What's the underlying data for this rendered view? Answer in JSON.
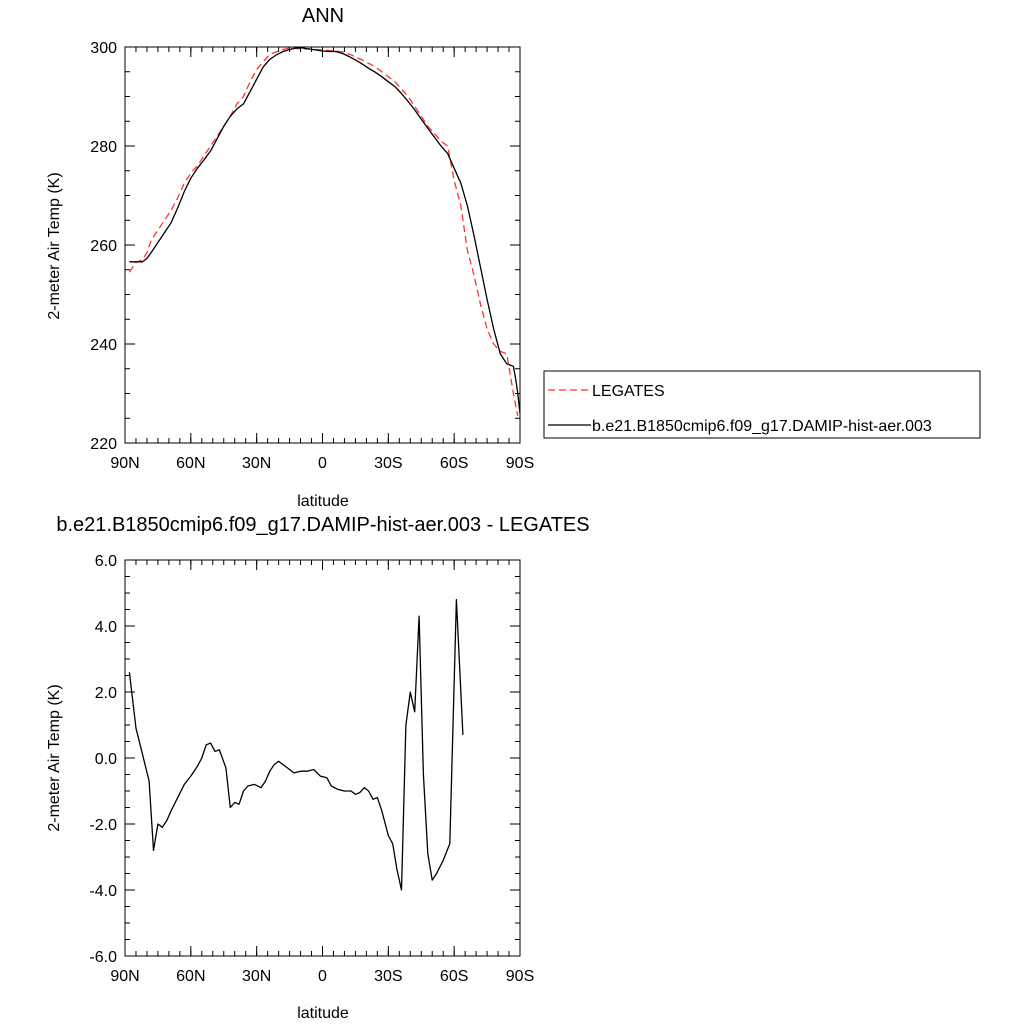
{
  "chart_data": [
    {
      "type": "line",
      "title": "ANN",
      "xlabel": "latitude",
      "ylabel": "2-meter Air Temp (K)",
      "xlim": [
        90,
        -90
      ],
      "ylim": [
        220,
        300
      ],
      "xticks": [
        {
          "value": 90,
          "label": "90N"
        },
        {
          "value": 60,
          "label": "60N"
        },
        {
          "value": 30,
          "label": "30N"
        },
        {
          "value": 0,
          "label": "0"
        },
        {
          "value": -30,
          "label": "30S"
        },
        {
          "value": -60,
          "label": "60S"
        },
        {
          "value": -90,
          "label": "90S"
        }
      ],
      "yticks": [
        {
          "value": 220,
          "label": "220"
        },
        {
          "value": 240,
          "label": "240"
        },
        {
          "value": 260,
          "label": "260"
        },
        {
          "value": 280,
          "label": "280"
        },
        {
          "value": 300,
          "label": "300"
        }
      ],
      "legend_position": "right",
      "series": [
        {
          "name": "LEGATES",
          "color": "#ff3333",
          "dash": "dashed",
          "points": [
            [
              88,
              254.5
            ],
            [
              85,
              256.5
            ],
            [
              82,
              257
            ],
            [
              80,
              258.5
            ],
            [
              78,
              261
            ],
            [
              75,
              263
            ],
            [
              72,
              265
            ],
            [
              69,
              267
            ],
            [
              66,
              269.5
            ],
            [
              63,
              272.5
            ],
            [
              60,
              274.5
            ],
            [
              57,
              276
            ],
            [
              54,
              278
            ],
            [
              51,
              280
            ],
            [
              48,
              282
            ],
            [
              45,
              284
            ],
            [
              42,
              286
            ],
            [
              39,
              288.5
            ],
            [
              36,
              290
            ],
            [
              33,
              293
            ],
            [
              30,
              295.5
            ],
            [
              27,
              297
            ],
            [
              24,
              298.5
            ],
            [
              21,
              299
            ],
            [
              18,
              299.5
            ],
            [
              15,
              299.8
            ],
            [
              12,
              299.7
            ],
            [
              9,
              299.6
            ],
            [
              6,
              299.6
            ],
            [
              3,
              299.5
            ],
            [
              0,
              299.4
            ],
            [
              -3,
              299.3
            ],
            [
              -6,
              299.2
            ],
            [
              -9,
              299
            ],
            [
              -12,
              298.6
            ],
            [
              -15,
              298
            ],
            [
              -18,
              297.4
            ],
            [
              -21,
              296.7
            ],
            [
              -24,
              296
            ],
            [
              -27,
              295
            ],
            [
              -30,
              294
            ],
            [
              -33,
              293
            ],
            [
              -36,
              291.5
            ],
            [
              -39,
              290
            ],
            [
              -42,
              288
            ],
            [
              -45,
              286
            ],
            [
              -48,
              284
            ],
            [
              -51,
              282.5
            ],
            [
              -54,
              281
            ],
            [
              -57,
              280
            ],
            [
              -60,
              273
            ],
            [
              -63,
              268
            ],
            [
              -66,
              259
            ],
            [
              -69,
              254
            ],
            [
              -72,
              248
            ],
            [
              -75,
              243
            ],
            [
              -78,
              240
            ],
            [
              -81,
              238.5
            ],
            [
              -84,
              238
            ],
            [
              -87,
              230
            ],
            [
              -89,
              225.5
            ]
          ]
        },
        {
          "name": "b.e21.B1850cmip6.f09_g17.DAMIP-hist-aer.003",
          "color": "#000000",
          "dash": "solid",
          "points": [
            [
              88,
              256.6
            ],
            [
              85,
              256.6
            ],
            [
              82,
              256.6
            ],
            [
              80,
              257.3
            ],
            [
              78,
              258.5
            ],
            [
              75,
              260.5
            ],
            [
              72,
              262.5
            ],
            [
              69,
              264.5
            ],
            [
              66,
              267.5
            ],
            [
              63,
              270.8
            ],
            [
              60,
              273.5
            ],
            [
              57,
              275.5
            ],
            [
              54,
              277.2
            ],
            [
              51,
              279
            ],
            [
              48,
              281.5
            ],
            [
              45,
              284
            ],
            [
              42,
              286
            ],
            [
              39,
              287.5
            ],
            [
              36,
              288.5
            ],
            [
              33,
              291
            ],
            [
              30,
              293.5
            ],
            [
              27,
              296
            ],
            [
              24,
              297.5
            ],
            [
              21,
              298.4
            ],
            [
              18,
              299.1
            ],
            [
              15,
              299.5
            ],
            [
              12,
              299.8
            ],
            [
              9,
              299.8
            ],
            [
              6,
              299.6
            ],
            [
              3,
              299.4
            ],
            [
              0,
              299.2
            ],
            [
              -3,
              299.1
            ],
            [
              -6,
              299.1
            ],
            [
              -9,
              298.7
            ],
            [
              -12,
              298.1
            ],
            [
              -15,
              297.4
            ],
            [
              -18,
              296.6
            ],
            [
              -21,
              295.7
            ],
            [
              -24,
              294.9
            ],
            [
              -27,
              294
            ],
            [
              -30,
              293
            ],
            [
              -33,
              292
            ],
            [
              -36,
              290.6
            ],
            [
              -39,
              289
            ],
            [
              -42,
              287.3
            ],
            [
              -45,
              285.4
            ],
            [
              -48,
              283.6
            ],
            [
              -51,
              281.8
            ],
            [
              -54,
              280
            ],
            [
              -57,
              278.5
            ],
            [
              -60,
              275.5
            ],
            [
              -63,
              272.5
            ],
            [
              -66,
              268
            ],
            [
              -69,
              262
            ],
            [
              -72,
              255.5
            ],
            [
              -75,
              249
            ],
            [
              -78,
              243
            ],
            [
              -81,
              238
            ],
            [
              -84,
              236
            ],
            [
              -87,
              235.5
            ],
            [
              -88,
              233
            ],
            [
              -89,
              230
            ],
            [
              -90,
              226
            ]
          ]
        }
      ]
    },
    {
      "type": "line",
      "title": "b.e21.B1850cmip6.f09_g17.DAMIP-hist-aer.003 - LEGATES",
      "xlabel": "latitude",
      "ylabel": "2-meter Air Temp (K)",
      "xlim": [
        90,
        -90
      ],
      "ylim": [
        -6,
        6
      ],
      "xticks": [
        {
          "value": 90,
          "label": "90N"
        },
        {
          "value": 60,
          "label": "60N"
        },
        {
          "value": 30,
          "label": "30N"
        },
        {
          "value": 0,
          "label": "0"
        },
        {
          "value": -30,
          "label": "30S"
        },
        {
          "value": -60,
          "label": "60S"
        },
        {
          "value": -90,
          "label": "90S"
        }
      ],
      "yticks": [
        {
          "value": -6,
          "label": "-6.0"
        },
        {
          "value": -4,
          "label": "-4.0"
        },
        {
          "value": -2,
          "label": "-2.0"
        },
        {
          "value": 0,
          "label": "0.0"
        },
        {
          "value": 2,
          "label": "2.0"
        },
        {
          "value": 4,
          "label": "4.0"
        },
        {
          "value": 6,
          "label": "6.0"
        }
      ],
      "series": [
        {
          "color": "#000000",
          "dash": "solid",
          "points": [
            [
              88,
              2.6
            ],
            [
              85,
              0.9
            ],
            [
              82,
              0.1
            ],
            [
              79,
              -0.7
            ],
            [
              77,
              -2.8
            ],
            [
              75,
              -2.0
            ],
            [
              73,
              -2.1
            ],
            [
              71,
              -1.9
            ],
            [
              69,
              -1.6
            ],
            [
              66,
              -1.2
            ],
            [
              63,
              -0.8
            ],
            [
              60,
              -0.55
            ],
            [
              57,
              -0.25
            ],
            [
              55,
              0.0
            ],
            [
              53,
              0.4
            ],
            [
              51,
              0.45
            ],
            [
              49,
              0.2
            ],
            [
              47,
              0.25
            ],
            [
              44,
              -0.3
            ],
            [
              42,
              -1.5
            ],
            [
              40,
              -1.35
            ],
            [
              38,
              -1.4
            ],
            [
              36,
              -1.0
            ],
            [
              34,
              -0.85
            ],
            [
              31,
              -0.8
            ],
            [
              28,
              -0.9
            ],
            [
              26,
              -0.7
            ],
            [
              24,
              -0.4
            ],
            [
              22,
              -0.2
            ],
            [
              20,
              -0.1
            ],
            [
              16,
              -0.3
            ],
            [
              13,
              -0.45
            ],
            [
              10,
              -0.4
            ],
            [
              7,
              -0.4
            ],
            [
              4,
              -0.35
            ],
            [
              1,
              -0.55
            ],
            [
              -2,
              -0.6
            ],
            [
              -4,
              -0.85
            ],
            [
              -7,
              -0.95
            ],
            [
              -10,
              -1.0
            ],
            [
              -13,
              -1.0
            ],
            [
              -15,
              -1.1
            ],
            [
              -17,
              -1.05
            ],
            [
              -19,
              -0.9
            ],
            [
              -21,
              -1.0
            ],
            [
              -23,
              -1.25
            ],
            [
              -25,
              -1.2
            ],
            [
              -27,
              -1.6
            ],
            [
              -30,
              -2.35
            ],
            [
              -32,
              -2.6
            ],
            [
              -34,
              -3.4
            ],
            [
              -36,
              -4.0
            ],
            [
              -38,
              1.0
            ],
            [
              -40,
              2.0
            ],
            [
              -42,
              1.4
            ],
            [
              -44,
              4.3
            ],
            [
              -46,
              -0.5
            ],
            [
              -48,
              -2.9
            ],
            [
              -50,
              -3.7
            ],
            [
              -52,
              -3.5
            ],
            [
              -55,
              -3.1
            ],
            [
              -58,
              -2.6
            ],
            [
              -61,
              4.8
            ],
            [
              -64,
              0.7
            ]
          ]
        }
      ]
    }
  ]
}
